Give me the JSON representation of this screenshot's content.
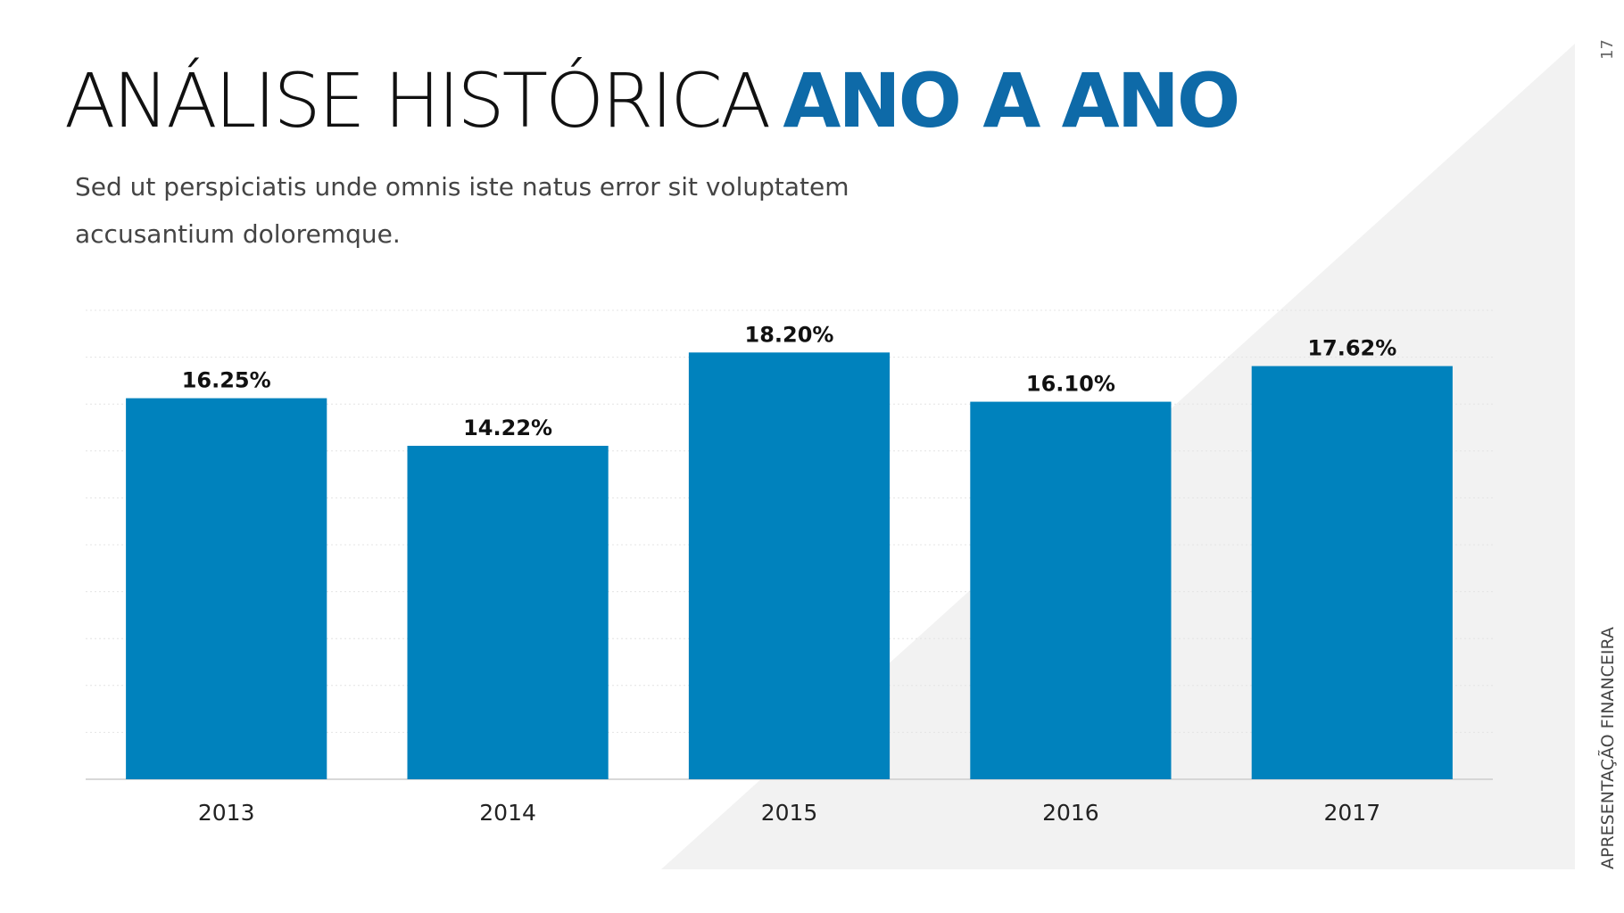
{
  "slide": {
    "page_number": "17",
    "side_label": "APRESENTAÇÃO FINANCEIRA"
  },
  "chart_data": {
    "type": "bar",
    "title": "ANÁLISE HISTÓRICA",
    "title_emphasis": "ANO A ANO",
    "subtitle_lines": [
      "Sed ut perspiciatis unde omnis iste natus error sit voluptatem",
      "accusantium doloremque."
    ],
    "categories": [
      "2013",
      "2014",
      "2015",
      "2016",
      "2017"
    ],
    "values": [
      16.25,
      14.22,
      18.2,
      16.1,
      17.62
    ],
    "value_labels": [
      "16.25%",
      "14.22%",
      "18.20%",
      "16.10%",
      "17.62%"
    ],
    "color": "#0082bd",
    "ylim": [
      0,
      20
    ],
    "yticks": [
      0,
      2,
      4,
      6,
      8,
      10,
      12,
      14,
      16,
      18,
      20
    ],
    "grid": true
  }
}
